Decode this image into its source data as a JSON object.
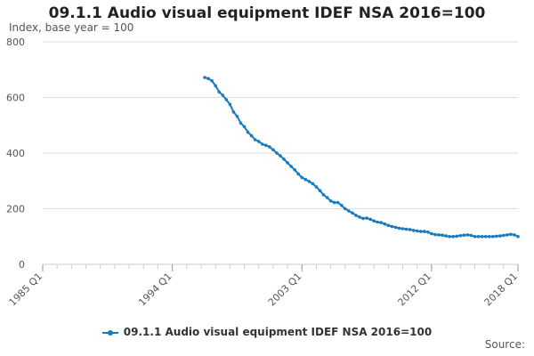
{
  "chart_data": {
    "type": "line",
    "title": "09.1.1 Audio visual equipment IDEF NSA 2016=100",
    "subtitle": "Index, base year = 100",
    "source_label": "Source:",
    "xlabel": "",
    "ylabel": "",
    "x_tick_labels": [
      "1985 Q1",
      "1994 Q1",
      "2003 Q1",
      "2012 Q1",
      "2018 Q1"
    ],
    "y_ticks": [
      0,
      200,
      400,
      600,
      800
    ],
    "ylim": [
      0,
      800
    ],
    "xlim": [
      "1985 Q1",
      "2018 Q1"
    ],
    "grid": "horizontal",
    "legend_position": "bottom",
    "series": [
      {
        "name": "09.1.1 Audio visual equipment IDEF NSA 2016=100",
        "color": "#1a7abf",
        "x": [
          "1996 Q2",
          "1996 Q3",
          "1996 Q4",
          "1997 Q1",
          "1997 Q2",
          "1997 Q3",
          "1997 Q4",
          "1998 Q1",
          "1998 Q2",
          "1998 Q3",
          "1998 Q4",
          "1999 Q1",
          "1999 Q2",
          "1999 Q3",
          "1999 Q4",
          "2000 Q1",
          "2000 Q2",
          "2000 Q3",
          "2000 Q4",
          "2001 Q1",
          "2001 Q2",
          "2001 Q3",
          "2001 Q4",
          "2002 Q1",
          "2002 Q2",
          "2002 Q3",
          "2002 Q4",
          "2003 Q1",
          "2003 Q2",
          "2003 Q3",
          "2003 Q4",
          "2004 Q1",
          "2004 Q2",
          "2004 Q3",
          "2004 Q4",
          "2005 Q1",
          "2005 Q2",
          "2005 Q3",
          "2005 Q4",
          "2006 Q1",
          "2006 Q2",
          "2006 Q3",
          "2006 Q4",
          "2007 Q1",
          "2007 Q2",
          "2007 Q3",
          "2007 Q4",
          "2008 Q1",
          "2008 Q2",
          "2008 Q3",
          "2008 Q4",
          "2009 Q1",
          "2009 Q2",
          "2009 Q3",
          "2009 Q4",
          "2010 Q1",
          "2010 Q2",
          "2010 Q3",
          "2010 Q4",
          "2011 Q1",
          "2011 Q2",
          "2011 Q3",
          "2011 Q4",
          "2012 Q1",
          "2012 Q2",
          "2012 Q3",
          "2012 Q4",
          "2013 Q1",
          "2013 Q2",
          "2013 Q3",
          "2013 Q4",
          "2014 Q1",
          "2014 Q2",
          "2014 Q3",
          "2014 Q4",
          "2015 Q1",
          "2015 Q2",
          "2015 Q3",
          "2015 Q4",
          "2016 Q1",
          "2016 Q2",
          "2016 Q3",
          "2016 Q4",
          "2017 Q1",
          "2017 Q2",
          "2017 Q3",
          "2017 Q4",
          "2018 Q1"
        ],
        "values": [
          672,
          668,
          660,
          642,
          620,
          608,
          592,
          575,
          548,
          532,
          508,
          495,
          475,
          462,
          448,
          442,
          432,
          428,
          422,
          412,
          400,
          390,
          378,
          365,
          352,
          340,
          325,
          312,
          305,
          298,
          290,
          278,
          265,
          250,
          240,
          228,
          222,
          222,
          212,
          200,
          192,
          185,
          176,
          170,
          165,
          166,
          162,
          156,
          152,
          150,
          145,
          140,
          136,
          133,
          130,
          128,
          126,
          125,
          122,
          120,
          118,
          118,
          116,
          110,
          107,
          106,
          105,
          102,
          100,
          100,
          101,
          103,
          105,
          106,
          104,
          100,
          100,
          100,
          100,
          100,
          100,
          101,
          102,
          104,
          106,
          108,
          106,
          100
        ]
      }
    ]
  }
}
